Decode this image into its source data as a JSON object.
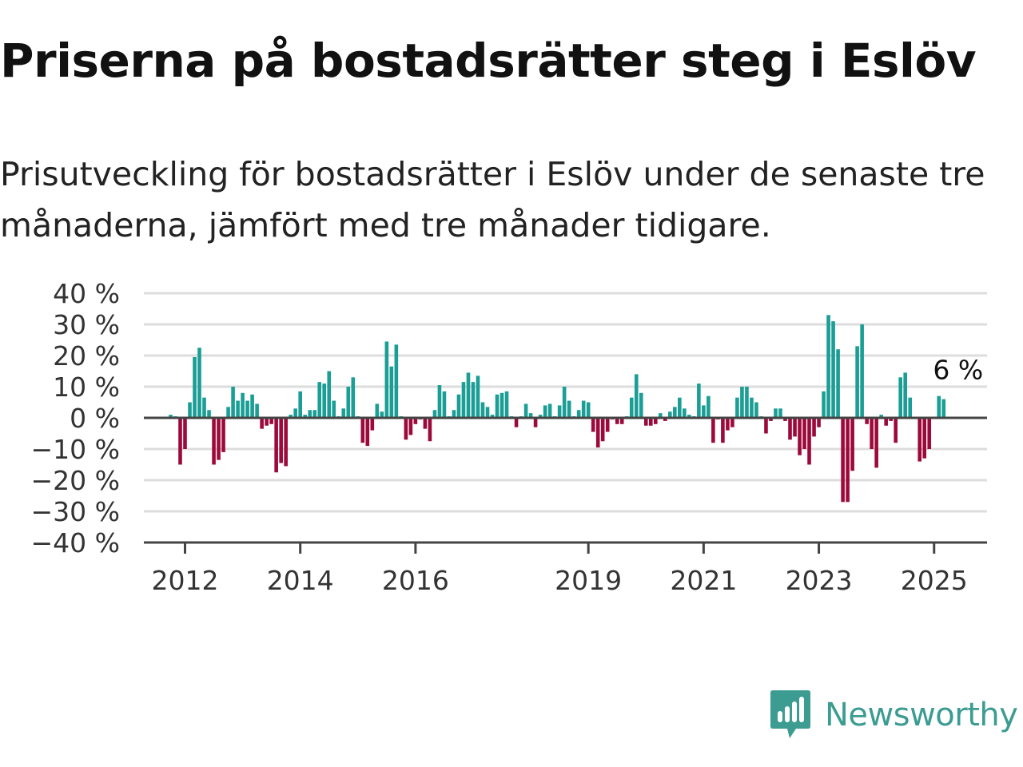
{
  "header": {
    "title": "Priserna på bostadsrätter steg i Eslöv",
    "subtitle": "Prisutveckling för bostadsrätter i Eslöv under de senaste tre månaderna, jämfört med tre månader tidigare."
  },
  "brand": {
    "name": "Newsworthy",
    "icon": "newsworthy-logo-icon",
    "color": "#3c9c92"
  },
  "chart_data": {
    "type": "bar",
    "title": "",
    "xlabel": "",
    "ylabel": "",
    "ylim": [
      -40,
      40
    ],
    "y_ticks": [
      40,
      30,
      20,
      10,
      0,
      -10,
      -20,
      -30,
      -40
    ],
    "y_tick_labels": [
      "40 %",
      "30 %",
      "20 %",
      "10 %",
      "0 %",
      "−10 %",
      "−20 %",
      "−30 %",
      "−40 %"
    ],
    "x_ticks": [
      {
        "label": "2012",
        "year": 2012
      },
      {
        "label": "2014",
        "year": 2014
      },
      {
        "label": "2016",
        "year": 2016
      },
      {
        "label": "2019",
        "year": 2019
      },
      {
        "label": "2021",
        "year": 2021
      },
      {
        "label": "2023",
        "year": 2023
      },
      {
        "label": "2025",
        "year": 2025
      }
    ],
    "x_start": "2011-10",
    "frequency": "monthly",
    "positive_color": "#1a9e95",
    "negative_color": "#9c0a3c",
    "grid": true,
    "legend": "none",
    "annotation": {
      "text": "6 %",
      "index": 163
    },
    "values": [
      1,
      0.5,
      -15,
      -10,
      5,
      19.5,
      22.5,
      6.5,
      2.5,
      -15,
      -13.5,
      -11,
      3.5,
      10,
      5.5,
      8,
      5.5,
      7.5,
      4.5,
      -3.5,
      -2.5,
      -2,
      -17.5,
      -14.5,
      -15.5,
      1,
      3,
      8.5,
      1,
      2.5,
      2.5,
      11.5,
      11,
      15,
      5.5,
      0.5,
      3,
      10,
      13,
      0.5,
      -8,
      -9,
      -4,
      4.5,
      2,
      24.5,
      16.5,
      23.5,
      0.5,
      -7,
      -5.5,
      -2,
      -0.5,
      -3.5,
      -7.5,
      2.5,
      10.5,
      8.5,
      0.5,
      2.5,
      7.5,
      11.5,
      14.5,
      11.5,
      13.5,
      5,
      3.5,
      1,
      7.5,
      8,
      8.5,
      0.5,
      -3,
      0.5,
      4.5,
      1.5,
      -3,
      1,
      4,
      4.5,
      0.5,
      4,
      10,
      5.5,
      0.5,
      2.5,
      5.5,
      5,
      -4.5,
      -9.5,
      -7.5,
      -4.5,
      -0.5,
      -2,
      -2,
      0.5,
      6.5,
      14,
      8,
      -2.5,
      -2.5,
      -2,
      1.5,
      -1,
      2,
      3.5,
      6.5,
      3,
      1,
      0.5,
      11,
      4,
      7,
      -8,
      -0.5,
      -8,
      -4,
      -3,
      6.5,
      10,
      10,
      6.5,
      5,
      0.5,
      -5,
      -1,
      3,
      3,
      -1,
      -7,
      -6,
      -12,
      -10,
      -15,
      -6,
      -3,
      8.5,
      33,
      31,
      22,
      -27,
      -27,
      -17,
      23,
      30,
      -2,
      -10,
      -16,
      1,
      -2.5,
      -1,
      -8,
      13,
      14.5,
      6.5,
      0,
      -14,
      -13,
      -10,
      0,
      7,
      6
    ]
  }
}
